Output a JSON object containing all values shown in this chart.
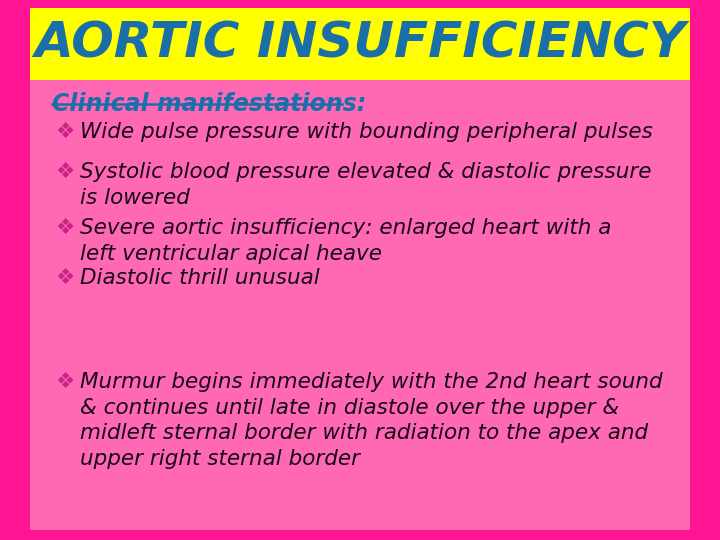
{
  "title": "AORTIC INSUFFICIENCY",
  "title_color": "#1a6fa8",
  "title_bg": "#ffff00",
  "title_fontsize": 36,
  "body_bg": "#ff69b4",
  "outer_bg": "#ff1493",
  "heading": "Clinical manifestations:",
  "heading_color": "#1a6fa8",
  "heading_fontsize": 17,
  "bullet_color": "#1a0a1a",
  "bullet_fontsize": 15.5,
  "bullet_symbol": "❖",
  "bullet_symbol_color": "#cc2288",
  "bullets": [
    "Wide pulse pressure with bounding peripheral pulses",
    "Systolic blood pressure elevated & diastolic pressure\nis lowered",
    "Severe aortic insufficiency: enlarged heart with a\nleft ventricular apical heave",
    "Diastolic thrill unusual",
    "Murmur begins immediately with the 2nd heart sound\n& continues until late in diastole over the upper &\nmidleft sternal border with radiation to the apex and\nupper right sternal border"
  ]
}
